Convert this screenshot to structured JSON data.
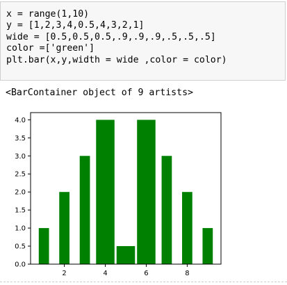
{
  "code_cell": {
    "lines": [
      "x = range(1,10)",
      "y = [1,2,3,4,0.5,4,3,2,1]",
      "wide = [0.5,0.5,0.5,.9,.9,.9,.5,.5,.5]",
      "color =['green']",
      "plt.bar(x,y,width = wide ,color = color)"
    ]
  },
  "output": {
    "text": "<BarContainer object of 9 artists>"
  },
  "chart_data": {
    "type": "bar",
    "x": [
      1,
      2,
      3,
      4,
      5,
      6,
      7,
      8,
      9
    ],
    "values": [
      1,
      2,
      3,
      4,
      0.5,
      4,
      3,
      2,
      1
    ],
    "widths": [
      0.5,
      0.5,
      0.5,
      0.9,
      0.9,
      0.9,
      0.5,
      0.5,
      0.5
    ],
    "color": "#008000",
    "title": "",
    "xlabel": "",
    "ylabel": "",
    "xlim": [
      0.35,
      9.65
    ],
    "ylim": [
      0,
      4.2
    ],
    "xticks": [
      2,
      4,
      6,
      8
    ],
    "yticks": [
      0.0,
      0.5,
      1.0,
      1.5,
      2.0,
      2.5,
      3.0,
      3.5,
      4.0
    ],
    "xtick_labels": [
      "2",
      "4",
      "6",
      "8"
    ],
    "ytick_labels": [
      "0.0",
      "0.5",
      "1.0",
      "1.5",
      "2.0",
      "2.5",
      "3.0",
      "3.5",
      "4.0"
    ],
    "grid": false
  }
}
